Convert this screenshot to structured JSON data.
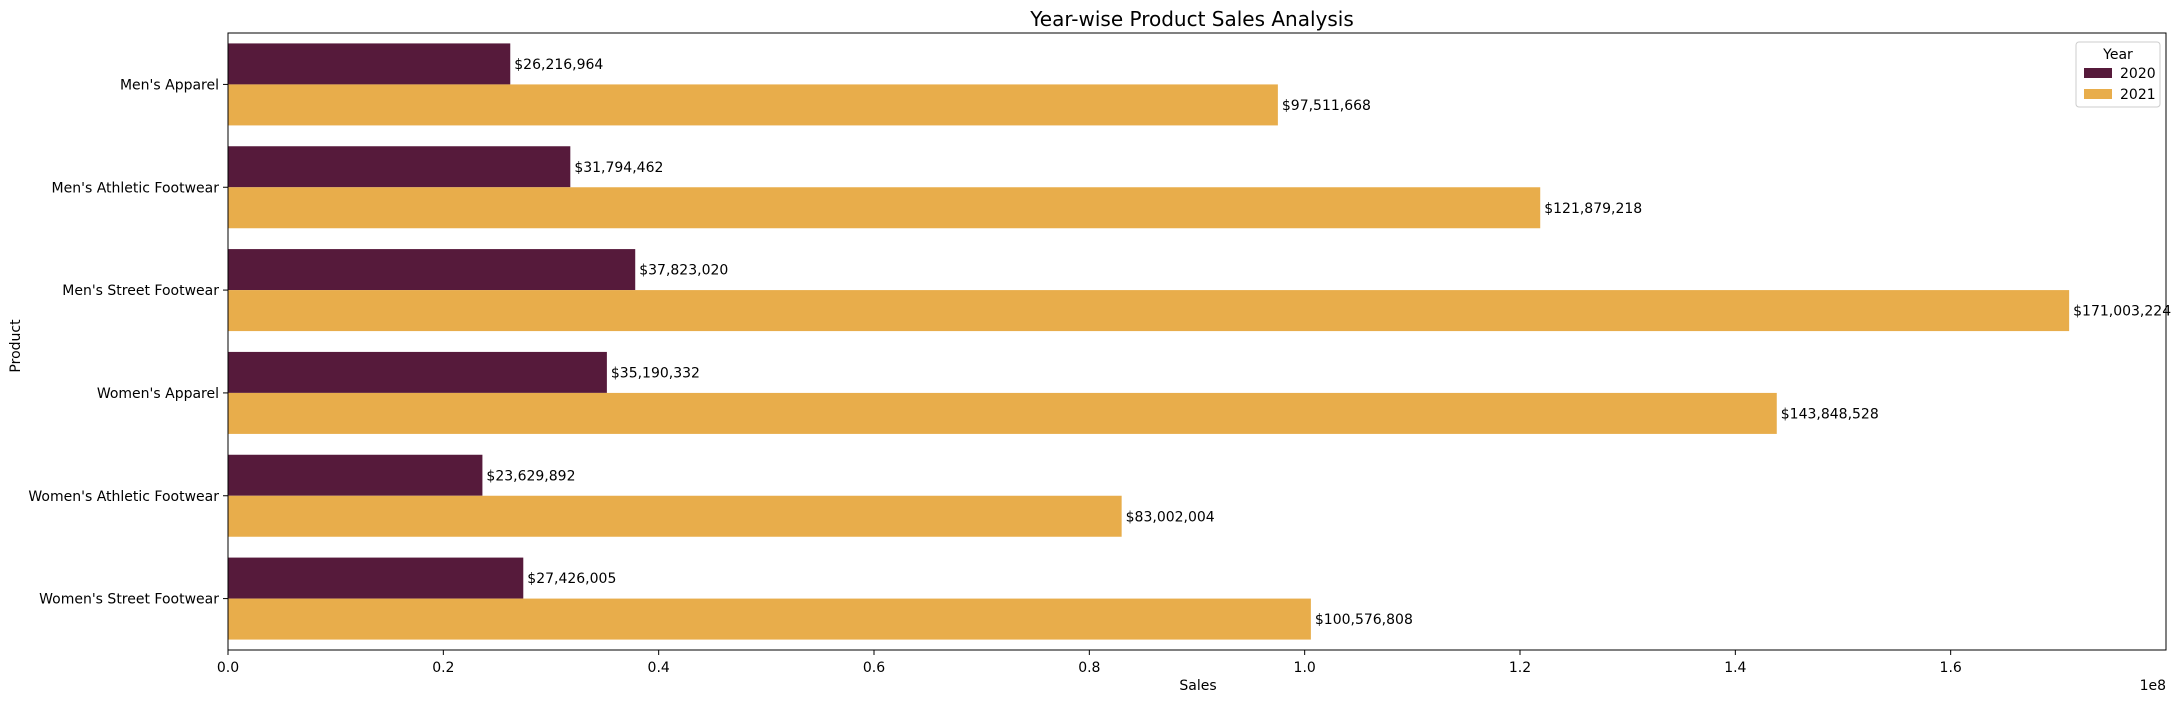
{
  "chart_data": {
    "type": "bar",
    "orientation": "horizontal",
    "title": "Year-wise Product Sales Analysis",
    "xlabel": "Sales",
    "ylabel": "Product",
    "x_offset_label": "1e8",
    "xlim": [
      0,
      1.8
    ],
    "x_ticks": [
      0.0,
      0.2,
      0.4,
      0.6,
      0.8,
      1.0,
      1.2,
      1.4,
      1.6
    ],
    "x_tick_labels": [
      "0.0",
      "0.2",
      "0.4",
      "0.6",
      "0.8",
      "1.0",
      "1.2",
      "1.4",
      "1.6"
    ],
    "categories": [
      "Men's Apparel",
      "Men's Athletic Footwear",
      "Men's Street Footwear",
      "Women's Apparel",
      "Women's Athletic Footwear",
      "Women's Street Footwear"
    ],
    "series": [
      {
        "name": "2020",
        "color": "#561a3b",
        "values": [
          26216964,
          31794462,
          37823020,
          35190332,
          23629892,
          27426005
        ],
        "labels": [
          "$26,216,964",
          "$31,794,462",
          "$37,823,020",
          "$35,190,332",
          "$23,629,892",
          "$27,426,005"
        ]
      },
      {
        "name": "2021",
        "color": "#e8ad4b",
        "values": [
          97511668,
          121879218,
          171003224,
          143848528,
          83002004,
          100576808
        ],
        "labels": [
          "$97,511,668",
          "$121,879,218",
          "$171,003,224",
          "$143,848,528",
          "$83,002,004",
          "$100,576,808"
        ]
      }
    ],
    "legend": {
      "title": "Year",
      "placement": "top-right"
    },
    "grid": false
  }
}
